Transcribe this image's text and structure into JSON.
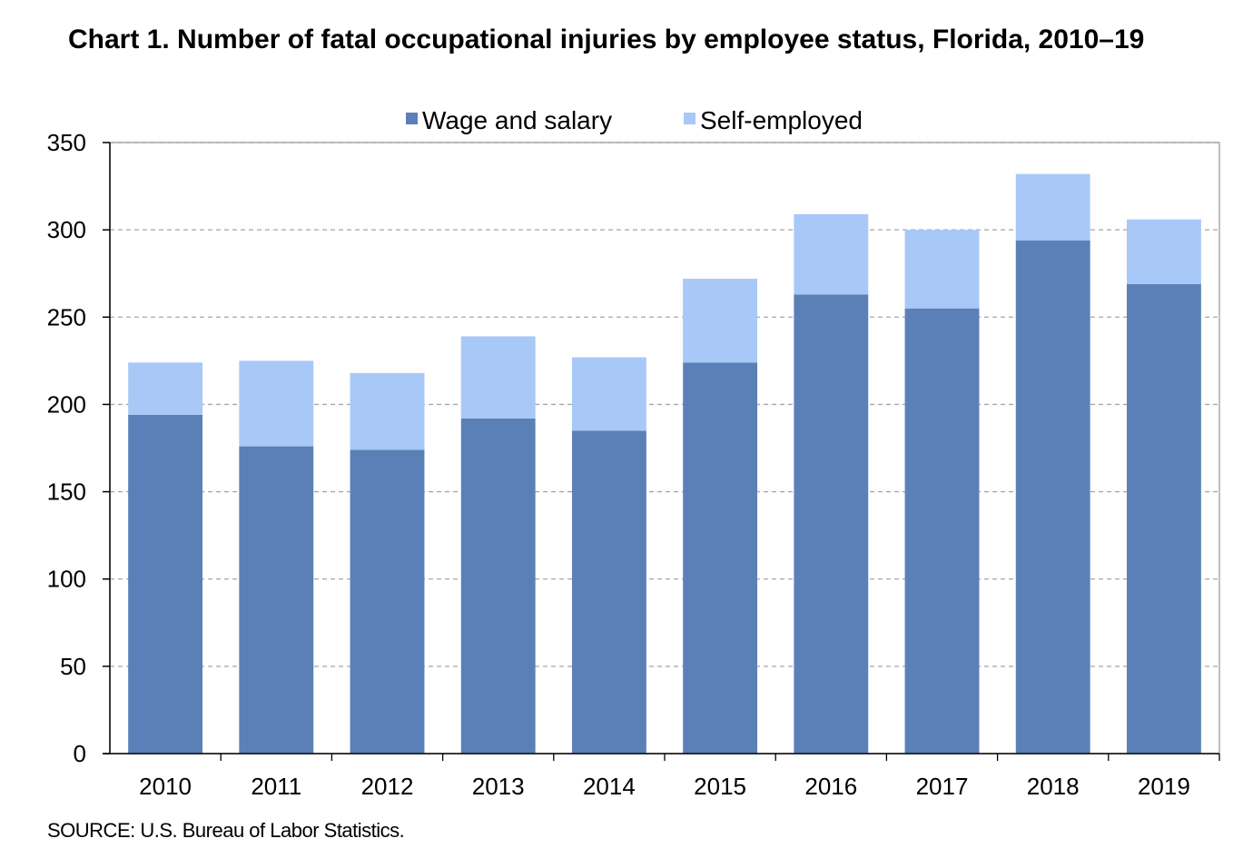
{
  "chart_data": {
    "type": "bar",
    "stacked": true,
    "title": "Chart 1. Number of fatal occupational injuries by employee status, Florida, 2010–19",
    "categories": [
      "2010",
      "2011",
      "2012",
      "2013",
      "2014",
      "2015",
      "2016",
      "2017",
      "2018",
      "2019"
    ],
    "series": [
      {
        "name": "Wage and salary",
        "color": "#5b80b8",
        "values": [
          194,
          176,
          174,
          192,
          185,
          224,
          263,
          255,
          294,
          269
        ]
      },
      {
        "name": "Self-employed",
        "color": "#a8c8f8",
        "values": [
          30,
          49,
          44,
          47,
          42,
          48,
          46,
          45,
          38,
          37
        ]
      }
    ],
    "ylim": [
      0,
      350
    ],
    "yticks": [
      0,
      50,
      100,
      150,
      200,
      250,
      300,
      350
    ],
    "grid": true,
    "legend_position": "top-center"
  },
  "footer": {
    "source": "SOURCE: U.S. Bureau of Labor Statistics."
  }
}
